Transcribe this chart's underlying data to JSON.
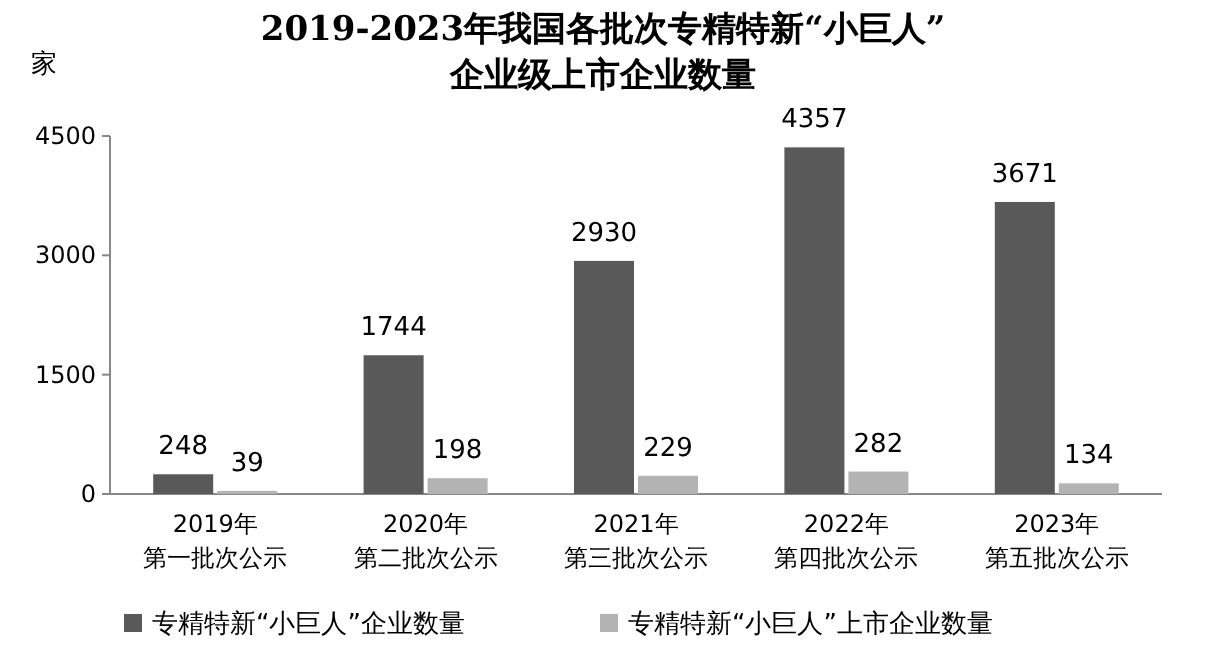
{
  "chart_data": {
    "type": "bar",
    "title": "2019-2023年我国各批次专精特新“小巨人”\n企业级上市企业数量",
    "ylabel": "家",
    "categories": [
      "2019年第一批次公示",
      "2020年第二批次公示",
      "2021年第三批次公示",
      "2022年第四批次公示",
      "2023年第五批次公示"
    ],
    "series": [
      {
        "name": "专精特新“小巨人”企业数量",
        "color": "#595959",
        "values": [
          248,
          1744,
          2930,
          4357,
          3671
        ]
      },
      {
        "name": "专精特新“小巨人”上市企业数量",
        "color": "#b3b3b3",
        "values": [
          39,
          198,
          229,
          282,
          134
        ]
      }
    ],
    "ylim": [
      0,
      4500
    ],
    "yticks": [
      0,
      1500,
      3000,
      4500
    ],
    "data_labels": true,
    "legend": "bottom",
    "grid": false
  }
}
